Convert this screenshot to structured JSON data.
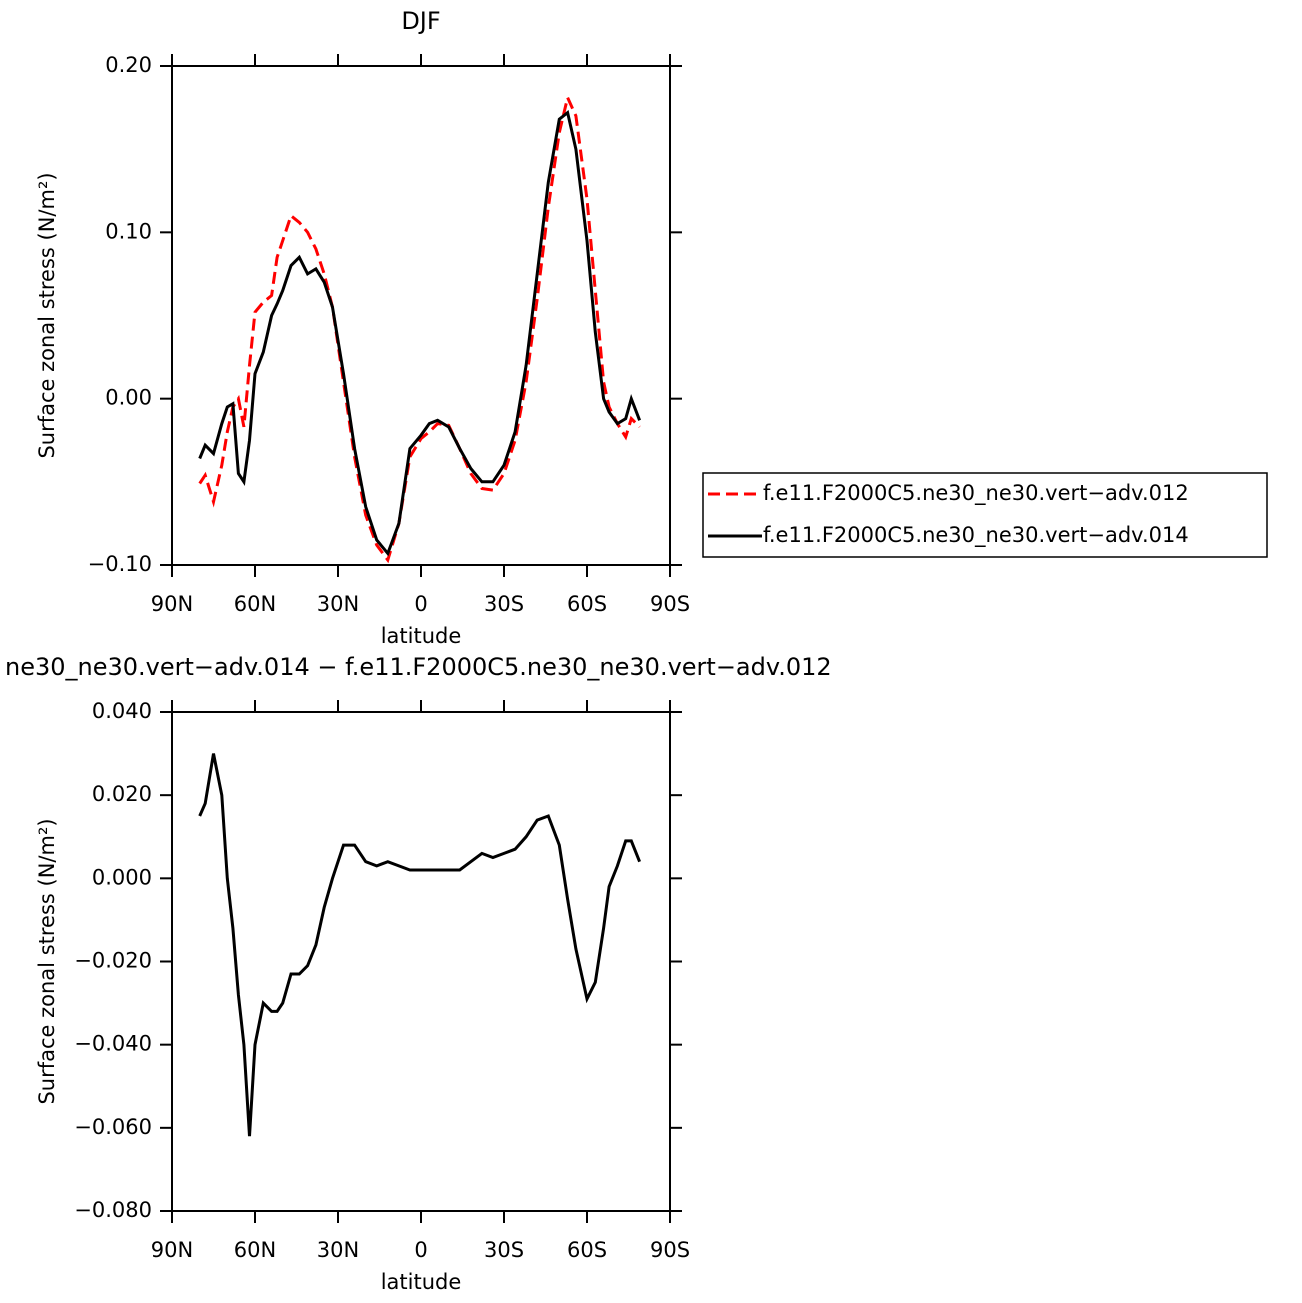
{
  "chart_data": [
    {
      "type": "line",
      "title": "DJF",
      "x_label": "latitude",
      "y_label": "Surface zonal stress (N/m²)",
      "x": [
        80,
        78,
        75,
        72,
        70,
        68,
        66,
        64,
        62,
        60,
        57,
        54,
        52,
        50,
        47,
        44,
        41,
        38,
        35,
        32,
        28,
        24,
        20,
        16,
        12,
        8,
        4,
        0,
        -3,
        -6,
        -10,
        -14,
        -18,
        -22,
        -26,
        -30,
        -34,
        -38,
        -42,
        -46,
        -50,
        -53,
        -56,
        -60,
        -63,
        -66,
        -68,
        -71,
        -74,
        -76,
        -79
      ],
      "xlim": [
        90,
        -90
      ],
      "xticks": [
        {
          "value": 90,
          "label": "90N"
        },
        {
          "value": 60,
          "label": "60N"
        },
        {
          "value": 30,
          "label": "30N"
        },
        0,
        {
          "value": -30,
          "label": "30S"
        },
        {
          "value": -60,
          "label": "60S"
        },
        {
          "value": -90,
          "label": "90S"
        }
      ],
      "ylim": [
        -0.1,
        0.2
      ],
      "yticks": [
        {
          "value": 0.2,
          "label": "0.20"
        },
        {
          "value": 0.1,
          "label": "0.10"
        },
        {
          "value": 0,
          "label": "0.00"
        },
        {
          "value": -0.1,
          "label": "−0.10"
        }
      ],
      "legend": "right",
      "series": [
        {
          "name": "f.e11.F2000C5.ne30_ne30.vert−adv.012",
          "color": "#ff0000",
          "dashed": true,
          "values": [
            -0.051,
            -0.046,
            -0.062,
            -0.04,
            -0.02,
            -0.005,
            0.0,
            -0.017,
            0.02,
            0.052,
            0.058,
            0.062,
            0.085,
            0.095,
            0.11,
            0.106,
            0.1,
            0.09,
            0.075,
            0.055,
            0.01,
            -0.035,
            -0.07,
            -0.088,
            -0.097,
            -0.075,
            -0.035,
            -0.024,
            -0.02,
            -0.015,
            -0.016,
            -0.03,
            -0.045,
            -0.054,
            -0.055,
            -0.045,
            -0.025,
            0.01,
            0.06,
            0.115,
            0.16,
            0.181,
            0.17,
            0.12,
            0.065,
            0.01,
            -0.005,
            -0.015,
            -0.023,
            -0.012,
            -0.017
          ]
        },
        {
          "name": "f.e11.F2000C5.ne30_ne30.vert−adv.014",
          "color": "#000000",
          "dashed": false,
          "values": [
            -0.036,
            -0.028,
            -0.033,
            -0.015,
            -0.005,
            -0.003,
            -0.045,
            -0.05,
            -0.025,
            0.015,
            0.028,
            0.05,
            0.057,
            0.065,
            0.08,
            0.085,
            0.075,
            0.078,
            0.07,
            0.055,
            0.015,
            -0.03,
            -0.065,
            -0.085,
            -0.093,
            -0.075,
            -0.03,
            -0.022,
            -0.015,
            -0.013,
            -0.017,
            -0.03,
            -0.042,
            -0.05,
            -0.05,
            -0.04,
            -0.02,
            0.02,
            0.075,
            0.13,
            0.168,
            0.172,
            0.15,
            0.095,
            0.04,
            0.0,
            -0.008,
            -0.015,
            -0.012,
            0.0,
            -0.013
          ]
        }
      ]
    },
    {
      "type": "line",
      "title": "ne30_ne30.vert−adv.014 − f.e11.F2000C5.ne30_ne30.vert−adv.012",
      "x_label": "latitude",
      "y_label": "Surface zonal stress (N/m²)",
      "x": [
        80,
        78,
        75,
        72,
        70,
        68,
        66,
        64,
        62,
        60,
        57,
        54,
        52,
        50,
        47,
        44,
        41,
        38,
        35,
        32,
        28,
        24,
        20,
        16,
        12,
        8,
        4,
        0,
        -3,
        -6,
        -10,
        -14,
        -18,
        -22,
        -26,
        -30,
        -34,
        -38,
        -42,
        -46,
        -50,
        -53,
        -56,
        -60,
        -63,
        -66,
        -68,
        -71,
        -74,
        -76,
        -79
      ],
      "xlim": [
        90,
        -90
      ],
      "xticks": [
        {
          "value": 90,
          "label": "90N"
        },
        {
          "value": 60,
          "label": "60N"
        },
        {
          "value": 30,
          "label": "30N"
        },
        0,
        {
          "value": -30,
          "label": "30S"
        },
        {
          "value": -60,
          "label": "60S"
        },
        {
          "value": -90,
          "label": "90S"
        }
      ],
      "ylim": [
        -0.08,
        0.04
      ],
      "yticks": [
        {
          "value": 0.04,
          "label": "0.040"
        },
        {
          "value": 0.02,
          "label": "0.020"
        },
        {
          "value": 0,
          "label": "0.000"
        },
        {
          "value": -0.02,
          "label": "−0.020"
        },
        {
          "value": -0.04,
          "label": "−0.040"
        },
        {
          "value": -0.06,
          "label": "−0.060"
        },
        {
          "value": -0.08,
          "label": "−0.080"
        }
      ],
      "series": [
        {
          "color": "#000000",
          "dashed": false,
          "values": [
            0.015,
            0.018,
            0.03,
            0.02,
            0.0,
            -0.012,
            -0.028,
            -0.04,
            -0.062,
            -0.04,
            -0.03,
            -0.032,
            -0.032,
            -0.03,
            -0.023,
            -0.023,
            -0.021,
            -0.016,
            -0.007,
            0.0,
            0.008,
            0.008,
            0.004,
            0.003,
            0.004,
            0.003,
            0.002,
            0.002,
            0.002,
            0.002,
            0.002,
            0.002,
            0.004,
            0.006,
            0.005,
            0.006,
            0.007,
            0.01,
            0.014,
            0.015,
            0.008,
            -0.005,
            -0.017,
            -0.029,
            -0.025,
            -0.012,
            -0.002,
            0.003,
            0.009,
            0.009,
            0.004
          ]
        }
      ]
    }
  ]
}
